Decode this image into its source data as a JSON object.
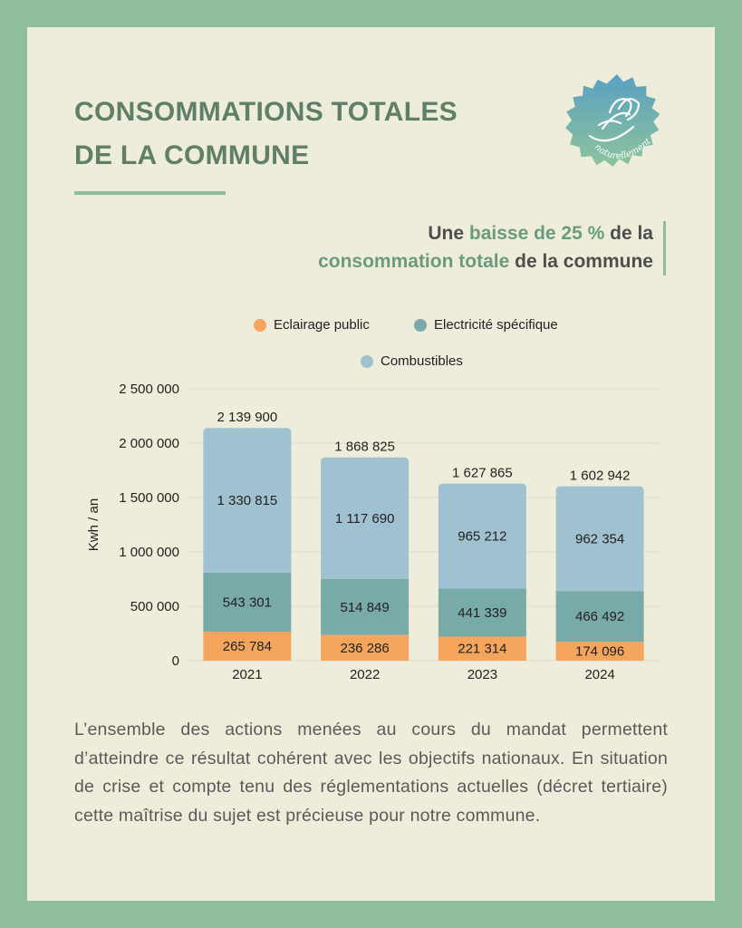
{
  "title": {
    "line1": "CONSOMMATIONS TOTALES",
    "line2": "DE LA COMMUNE"
  },
  "badge_text": "naturellement",
  "subtitle": {
    "p1": "Une ",
    "h1": "baisse de 25 %",
    "p2": " de la",
    "h2": "consommation totale",
    "p3": " de la commune"
  },
  "colors": {
    "eclairage": "#f6a55c",
    "electricite": "#78aaa7",
    "combustibles": "#a0c1cf",
    "accent": "#6c9a7d"
  },
  "chart_data": {
    "type": "bar",
    "stacked": true,
    "categories": [
      "2021",
      "2022",
      "2023",
      "2024"
    ],
    "series": [
      {
        "name": "Eclairage public",
        "values": [
          265784,
          236286,
          221314,
          174096
        ],
        "labels": [
          "265 784",
          "236 286",
          "221 314",
          "174 096"
        ]
      },
      {
        "name": "Electricité spécifique",
        "values": [
          543301,
          514849,
          441339,
          466492
        ],
        "labels": [
          "543 301",
          "514 849",
          "441 339",
          "466 492"
        ]
      },
      {
        "name": "Combustibles",
        "values": [
          1330815,
          1117690,
          965212,
          962354
        ],
        "labels": [
          "1 330 815",
          "1 117 690",
          "965 212",
          "962 354"
        ]
      }
    ],
    "totals": [
      "2 139 900",
      "1 868 825",
      "1 627 865",
      "1 602 942"
    ],
    "total_values": [
      2139900,
      1868825,
      1627865,
      1602942
    ],
    "ylabel": "Kwh / an",
    "ylim": [
      0,
      2500000
    ],
    "yticks": [
      {
        "value": 0,
        "label": "0"
      },
      {
        "value": 500000,
        "label": "500 000"
      },
      {
        "value": 1000000,
        "label": "1 000 000"
      },
      {
        "value": 1500000,
        "label": "1 500 000"
      },
      {
        "value": 2000000,
        "label": "2 000 000"
      },
      {
        "value": 2500000,
        "label": "2 500 000"
      }
    ],
    "legend": {
      "position": "top"
    }
  },
  "body": "L’ensemble des actions menées au cours du mandat permettent d’atteindre ce résultat cohérent avec les objectifs nationaux. En situation de crise et compte tenu des réglementations actuelles (décret tertiaire) cette maîtrise du sujet est précieuse pour notre commune."
}
